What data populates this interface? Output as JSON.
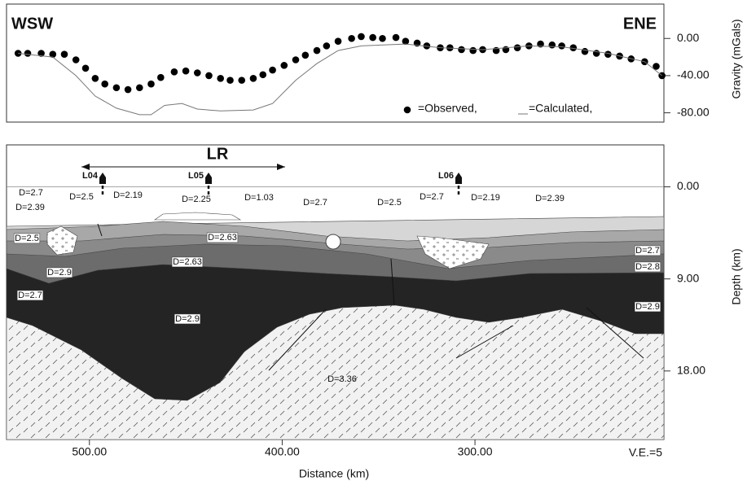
{
  "chart_data": [
    {
      "type": "line",
      "left_label": "WSW",
      "right_label": "ENE",
      "ylabel": "Gravity (mGals)",
      "xlim": [
        543,
        202
      ],
      "ylim": [
        -90,
        37
      ],
      "yticks": [
        {
          "value": 0,
          "label": "0.00"
        },
        {
          "value": -40,
          "label": "-40.00"
        },
        {
          "value": -80,
          "label": "-80.00"
        }
      ],
      "series": [
        {
          "name": "=Observed,",
          "color": "#000000",
          "style": "dots",
          "x": [
            537,
            532,
            525,
            519,
            513,
            507,
            502,
            497,
            492,
            486,
            480,
            474,
            468,
            463,
            456,
            450,
            444,
            438,
            432,
            427,
            421,
            415,
            410,
            405,
            399,
            393,
            388,
            382,
            377,
            371,
            364,
            359,
            353,
            348,
            341,
            336,
            330,
            325,
            318,
            313,
            307,
            301,
            296,
            289,
            284,
            278,
            272,
            266,
            260,
            255,
            249,
            243,
            237,
            231,
            225,
            219,
            212,
            206,
            203
          ],
          "values": [
            -16,
            -16,
            -16,
            -17,
            -17,
            -23,
            -32,
            -43,
            -49,
            -53,
            -55,
            -53,
            -49,
            -42,
            -36,
            -35,
            -37,
            -40,
            -43,
            -45,
            -45,
            -43,
            -39,
            -34,
            -29,
            -23,
            -18,
            -13,
            -8,
            -3,
            0,
            2,
            1,
            0,
            1,
            -3,
            -5,
            -8,
            -10,
            -10,
            -12,
            -13,
            -12,
            -13,
            -12,
            -10,
            -8,
            -6,
            -7,
            -8,
            -10,
            -14,
            -16,
            -17,
            -19,
            -22,
            -25,
            -30,
            -40
          ]
        },
        {
          "name": "=Calculated,",
          "color": "#777777",
          "style": "line",
          "x": [
            537,
            519,
            507,
            497,
            486,
            474,
            468,
            461,
            452,
            444,
            432,
            415,
            405,
            393,
            382,
            371,
            359,
            348,
            336,
            318,
            296,
            272,
            255,
            231,
            212,
            203
          ],
          "values": [
            -16,
            -20,
            -40,
            -62,
            -75,
            -82,
            -82,
            -72,
            -70,
            -76,
            -78,
            -77,
            -70,
            -45,
            -27,
            -13,
            -8,
            -7,
            -6,
            -10,
            -12,
            -8,
            -9,
            -16,
            -25,
            -40
          ]
        }
      ]
    },
    {
      "type": "cross-section",
      "xlabel": "Distance (km)",
      "ylabel": "Depth (km)",
      "xlim": [
        543,
        202
      ],
      "xticks": [
        {
          "value": 500,
          "label": "500.00"
        },
        {
          "value": 400,
          "label": "400.00"
        },
        {
          "value": 300,
          "label": "300.00"
        }
      ],
      "ylim": [
        24.7,
        -4.1
      ],
      "yticks": [
        {
          "value": 0,
          "label": "0.00"
        },
        {
          "value": 9,
          "label": "9.00"
        },
        {
          "value": 18,
          "label": "18.00"
        }
      ],
      "profile": "LR",
      "stations": [
        "L04",
        "L05",
        "L06"
      ],
      "note": "V.E.=5",
      "density_labels": [
        "D=2.7",
        "D=2.39",
        "D=2.5",
        "D=2.19",
        "D=2.25",
        "D=1.03",
        "D=2.7",
        "D=2.5",
        "D=2.7",
        "D=2.19",
        "D=2.39",
        "D=2.5",
        "D=2.63",
        "D=2.9",
        "D=2.63",
        "D=2.7",
        "D=2.8",
        "D=2.7",
        "D=2.9",
        "D=2.9",
        "D=3.36"
      ]
    }
  ]
}
